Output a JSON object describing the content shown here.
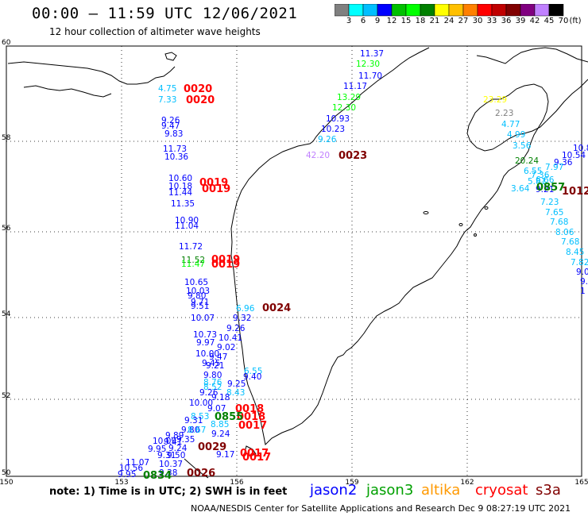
{
  "header": {
    "title": "00:00 – 11:59 UTC 12/06/2021",
    "subtitle": "12 hour collection of altimeter wave heights"
  },
  "scale": {
    "labels": [
      "3",
      "6",
      "9",
      "12",
      "15",
      "18",
      "21",
      "24",
      "27",
      "30",
      "33",
      "36",
      "39",
      "42",
      "45",
      "70"
    ],
    "unit": "(ft)",
    "colors": [
      "#808080",
      "#00ffff",
      "#00bfff",
      "#0000ff",
      "#00c000",
      "#00ff00",
      "#008000",
      "#ffff00",
      "#ffc000",
      "#ff8000",
      "#ff0000",
      "#c00000",
      "#800000",
      "#800080",
      "#c080ff",
      "#000000"
    ]
  },
  "axes": {
    "x_ticks": [
      "150",
      "153",
      "156",
      "159",
      "162",
      "165"
    ],
    "y_ticks": [
      "60",
      "58",
      "56",
      "54",
      "52",
      "50"
    ]
  },
  "map": {
    "labels": [
      {
        "t": "11.37",
        "c": "#0000ff"
      },
      {
        "t": "12.30",
        "c": "#00ff00"
      },
      {
        "t": "11.70",
        "c": "#0000ff"
      },
      {
        "t": "11.17",
        "c": "#0000ff"
      },
      {
        "t": "13.29",
        "c": "#00ff00"
      },
      {
        "t": "12.30",
        "c": "#00ff00"
      },
      {
        "t": "10.93",
        "c": "#0000ff"
      },
      {
        "t": "10.23",
        "c": "#0000ff"
      },
      {
        "t": "9.26",
        "c": "#00bfff"
      },
      {
        "t": "42.20",
        "c": "#c080ff"
      },
      {
        "t": "0023",
        "c": "#800000",
        "big": true
      },
      {
        "t": "4.75",
        "c": "#00bfff"
      },
      {
        "t": "7.33",
        "c": "#00bfff"
      },
      {
        "t": "0020",
        "c": "#ff0000",
        "big": true
      },
      {
        "t": "0020",
        "c": "#ff0000",
        "big": true
      },
      {
        "t": "9.26",
        "c": "#0000ff"
      },
      {
        "t": "9.47",
        "c": "#0000ff"
      },
      {
        "t": "9.83",
        "c": "#0000ff"
      },
      {
        "t": "11.73",
        "c": "#0000ff"
      },
      {
        "t": "10.36",
        "c": "#0000ff"
      },
      {
        "t": "10.60",
        "c": "#0000ff"
      },
      {
        "t": "10.18",
        "c": "#0000ff"
      },
      {
        "t": "11.44",
        "c": "#0000ff"
      },
      {
        "t": "0019",
        "c": "#ff0000",
        "big": true
      },
      {
        "t": "0019",
        "c": "#ff0000",
        "big": true
      },
      {
        "t": "11.35",
        "c": "#0000ff"
      },
      {
        "t": "10.90",
        "c": "#0000ff"
      },
      {
        "t": "11.04",
        "c": "#0000ff"
      },
      {
        "t": "11.72",
        "c": "#0000ff"
      },
      {
        "t": "11.52",
        "c": "#008000"
      },
      {
        "t": "11.47",
        "c": "#00ff00"
      },
      {
        "t": "0019",
        "c": "#ff0000",
        "big": true
      },
      {
        "t": "0019",
        "c": "#ff0000",
        "big": true
      },
      {
        "t": "10.65",
        "c": "#0000ff"
      },
      {
        "t": "10.03",
        "c": "#0000ff"
      },
      {
        "t": "9.80",
        "c": "#0000ff"
      },
      {
        "t": "9.71",
        "c": "#0000ff"
      },
      {
        "t": "9.51",
        "c": "#0000ff"
      },
      {
        "t": "6.96",
        "c": "#00bfff"
      },
      {
        "t": "0024",
        "c": "#800000",
        "big": true
      },
      {
        "t": "10.07",
        "c": "#0000ff"
      },
      {
        "t": "9.32",
        "c": "#0000ff"
      },
      {
        "t": "9.26",
        "c": "#0000ff"
      },
      {
        "t": "10.73",
        "c": "#0000ff"
      },
      {
        "t": "10.41",
        "c": "#0000ff"
      },
      {
        "t": "9.97",
        "c": "#0000ff"
      },
      {
        "t": "9.02",
        "c": "#0000ff"
      },
      {
        "t": "10.00",
        "c": "#0000ff"
      },
      {
        "t": "9.47",
        "c": "#0000ff"
      },
      {
        "t": "9.45",
        "c": "#0000ff"
      },
      {
        "t": "9.21",
        "c": "#0000ff"
      },
      {
        "t": "6.55",
        "c": "#00bfff"
      },
      {
        "t": "9.80",
        "c": "#0000ff"
      },
      {
        "t": "9.40",
        "c": "#0000ff"
      },
      {
        "t": "8.76",
        "c": "#00bfff"
      },
      {
        "t": "9.25",
        "c": "#0000ff"
      },
      {
        "t": "8.52",
        "c": "#00bfff"
      },
      {
        "t": "8.43",
        "c": "#00bfff"
      },
      {
        "t": "9.26",
        "c": "#0000ff"
      },
      {
        "t": "9.18",
        "c": "#0000ff"
      },
      {
        "t": "10.00",
        "c": "#0000ff"
      },
      {
        "t": "9.07",
        "c": "#0000ff"
      },
      {
        "t": "0018",
        "c": "#ff0000",
        "big": true
      },
      {
        "t": "0018",
        "c": "#ff0000",
        "big": true
      },
      {
        "t": "8.53",
        "c": "#00bfff"
      },
      {
        "t": "9.31",
        "c": "#0000ff"
      },
      {
        "t": "0855",
        "c": "#008000",
        "big": true
      },
      {
        "t": "0017",
        "c": "#ff0000",
        "big": true
      },
      {
        "t": "8.85",
        "c": "#00bfff"
      },
      {
        "t": "9.80",
        "c": "#0000ff"
      },
      {
        "t": "8.67",
        "c": "#00bfff"
      },
      {
        "t": "9.24",
        "c": "#0000ff"
      },
      {
        "t": "9.89",
        "c": "#0000ff"
      },
      {
        "t": "9.35",
        "c": "#0000ff"
      },
      {
        "t": "9.41",
        "c": "#0000ff"
      },
      {
        "t": "10.09",
        "c": "#0000ff"
      },
      {
        "t": "9.95",
        "c": "#0000ff"
      },
      {
        "t": "9.24",
        "c": "#0000ff"
      },
      {
        "t": "0029",
        "c": "#800000",
        "big": true
      },
      {
        "t": "9.31",
        "c": "#0000ff"
      },
      {
        "t": "9.50",
        "c": "#0000ff"
      },
      {
        "t": "9.17",
        "c": "#0000ff"
      },
      {
        "t": "0017",
        "c": "#ff0000",
        "big": true
      },
      {
        "t": "0017",
        "c": "#ff0000",
        "big": true
      },
      {
        "t": "11.07",
        "c": "#0000ff"
      },
      {
        "t": "10.37",
        "c": "#0000ff"
      },
      {
        "t": "10.56",
        "c": "#0000ff"
      },
      {
        "t": "9.95",
        "c": "#0000ff"
      },
      {
        "t": "9.38",
        "c": "#0000ff"
      },
      {
        "t": "0834",
        "c": "#008000",
        "big": true
      },
      {
        "t": "0026",
        "c": "#800000",
        "big": true
      },
      {
        "t": "23.29",
        "c": "#ffff00"
      },
      {
        "t": "2.23",
        "c": "#808080"
      },
      {
        "t": "4.77",
        "c": "#00bfff"
      },
      {
        "t": "4.99",
        "c": "#00bfff"
      },
      {
        "t": "3.56",
        "c": "#00bfff"
      },
      {
        "t": "10.54",
        "c": "#0000ff"
      },
      {
        "t": "10.8",
        "c": "#0000ff"
      },
      {
        "t": "9.36",
        "c": "#0000ff"
      },
      {
        "t": "20.24",
        "c": "#008000"
      },
      {
        "t": "7.97",
        "c": "#00bfff"
      },
      {
        "t": "6.55",
        "c": "#00bfff"
      },
      {
        "t": "7.36",
        "c": "#00bfff"
      },
      {
        "t": "5.81",
        "c": "#00bfff"
      },
      {
        "t": "6.66",
        "c": "#00bfff"
      },
      {
        "t": "3.64",
        "c": "#00bfff"
      },
      {
        "t": "9.21",
        "c": "#0000ff"
      },
      {
        "t": "0857",
        "c": "#008000",
        "big": true
      },
      {
        "t": "1012",
        "c": "#800000",
        "big": true
      },
      {
        "t": "7.23",
        "c": "#00bfff"
      },
      {
        "t": "7.65",
        "c": "#00bfff"
      },
      {
        "t": "7.68",
        "c": "#00bfff"
      },
      {
        "t": "8.06",
        "c": "#00bfff"
      },
      {
        "t": "7.68",
        "c": "#00bfff"
      },
      {
        "t": "8.45",
        "c": "#00bfff"
      },
      {
        "t": "7.82",
        "c": "#00bfff"
      },
      {
        "t": "9.0",
        "c": "#0000ff"
      },
      {
        "t": "9.",
        "c": "#0000ff"
      },
      {
        "t": "1",
        "c": "#0000ff"
      }
    ]
  },
  "footer": {
    "note": "note: 1) Time is in UTC; 2) SWH is in feet",
    "legend": [
      {
        "label": "jason2",
        "color": "#0000ff"
      },
      {
        "label": "jason3",
        "color": "#00a000"
      },
      {
        "label": "altika",
        "color": "#ff9900"
      },
      {
        "label": "cryosat",
        "color": "#ff0000"
      },
      {
        "label": "s3a",
        "color": "#800000"
      }
    ],
    "credit": "NOAA/NESDIS Center for Satellite Applications and Research    Dec  9 08:27:19 UTC 2021"
  }
}
